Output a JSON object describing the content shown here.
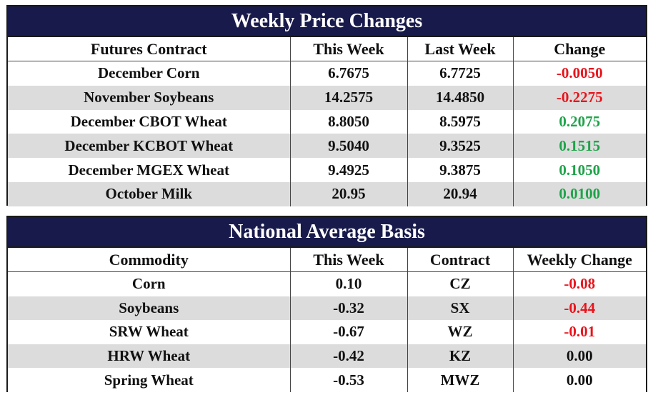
{
  "weekly": {
    "title": "Weekly Price Changes",
    "headers": [
      "Futures Contract",
      "This Week",
      "Last Week",
      "Change"
    ],
    "rows": [
      {
        "contract": "December Corn",
        "this_week": "6.7675",
        "last_week": "6.7725",
        "change": "-0.0050",
        "sign": "neg"
      },
      {
        "contract": "November Soybeans",
        "this_week": "14.2575",
        "last_week": "14.4850",
        "change": "-0.2275",
        "sign": "neg"
      },
      {
        "contract": "December CBOT Wheat",
        "this_week": "8.8050",
        "last_week": "8.5975",
        "change": "0.2075",
        "sign": "pos"
      },
      {
        "contract": "December KCBOT Wheat",
        "this_week": "9.5040",
        "last_week": "9.3525",
        "change": "0.1515",
        "sign": "pos"
      },
      {
        "contract": "December MGEX Wheat",
        "this_week": "9.4925",
        "last_week": "9.3875",
        "change": "0.1050",
        "sign": "pos"
      },
      {
        "contract": "October Milk",
        "this_week": "20.95",
        "last_week": "20.94",
        "change": "0.0100",
        "sign": "pos"
      }
    ]
  },
  "basis": {
    "title": "National Average Basis",
    "headers": [
      "Commodity",
      "This Week",
      "Contract",
      "Weekly Change"
    ],
    "rows": [
      {
        "commodity": "Corn",
        "this_week": "0.10",
        "contract": "CZ",
        "change": "-0.08",
        "sign": "neg"
      },
      {
        "commodity": "Soybeans",
        "this_week": "-0.32",
        "contract": "SX",
        "change": "-0.44",
        "sign": "neg"
      },
      {
        "commodity": "SRW Wheat",
        "this_week": "-0.67",
        "contract": "WZ",
        "change": "-0.01",
        "sign": "neg"
      },
      {
        "commodity": "HRW Wheat",
        "this_week": "-0.42",
        "contract": "KZ",
        "change": "0.00",
        "sign": "zero"
      },
      {
        "commodity": "Spring Wheat",
        "this_week": "-0.53",
        "contract": "MWZ",
        "change": "0.00",
        "sign": "zero"
      }
    ]
  },
  "colors": {
    "title_bg": "#171a4a",
    "row_shade": "#dcdcdc",
    "negative": "#e8141c",
    "positive": "#1fa34a"
  }
}
